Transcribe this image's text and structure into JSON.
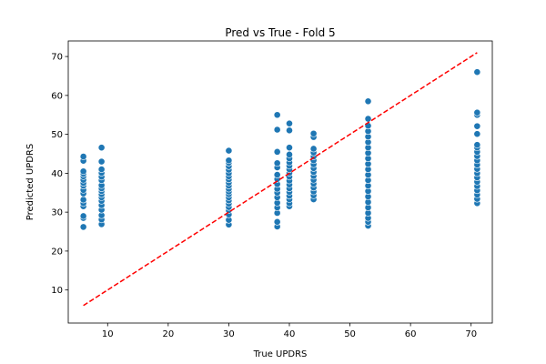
{
  "chart_data": {
    "type": "scatter",
    "title": "Pred vs True - Fold 5",
    "xlabel": "True UPDRS",
    "ylabel": "Predicted UPDRS",
    "xlim": [
      3.5,
      73.5
    ],
    "ylim": [
      1.5,
      74
    ],
    "xticks": [
      10,
      20,
      30,
      40,
      50,
      60,
      70
    ],
    "yticks": [
      10,
      20,
      30,
      40,
      50,
      60,
      70
    ],
    "grid": false,
    "legend": "none",
    "marker_color": "#1f77b4",
    "reference_line": {
      "x": [
        6,
        71
      ],
      "y": [
        6,
        71
      ],
      "color": "#ff0000",
      "style": "dashed"
    },
    "series": [
      {
        "points": [
          [
            6,
            26.2
          ],
          [
            6,
            28.5
          ],
          [
            6,
            29.0
          ],
          [
            6,
            31.5
          ],
          [
            6,
            32.3
          ],
          [
            6,
            33.2
          ],
          [
            6,
            34.8
          ],
          [
            6,
            35.7
          ],
          [
            6,
            36.8
          ],
          [
            6,
            37.5
          ],
          [
            6,
            38.3
          ],
          [
            6,
            39.2
          ],
          [
            6,
            39.9
          ],
          [
            6,
            40.5
          ],
          [
            6,
            43.2
          ],
          [
            6,
            44.3
          ],
          [
            9,
            26.9
          ],
          [
            9,
            28.1
          ],
          [
            9,
            29.2
          ],
          [
            9,
            30.6
          ],
          [
            9,
            31.8
          ],
          [
            9,
            32.9
          ],
          [
            9,
            33.8
          ],
          [
            9,
            34.6
          ],
          [
            9,
            35.4
          ],
          [
            9,
            36.1
          ],
          [
            9,
            36.9
          ],
          [
            9,
            38.2
          ],
          [
            9,
            39.1
          ],
          [
            9,
            40.1
          ],
          [
            9,
            41.0
          ],
          [
            9,
            43.0
          ],
          [
            9,
            46.6
          ],
          [
            30,
            26.8
          ],
          [
            30,
            28.0
          ],
          [
            30,
            29.4
          ],
          [
            30,
            30.5
          ],
          [
            30,
            31.3
          ],
          [
            30,
            32.2
          ],
          [
            30,
            33.0
          ],
          [
            30,
            33.8
          ],
          [
            30,
            34.6
          ],
          [
            30,
            35.3
          ],
          [
            30,
            36.0
          ],
          [
            30,
            36.8
          ],
          [
            30,
            37.6
          ],
          [
            30,
            38.4
          ],
          [
            30,
            39.2
          ],
          [
            30,
            40.0
          ],
          [
            30,
            40.9
          ],
          [
            30,
            41.8
          ],
          [
            30,
            42.7
          ],
          [
            30,
            43.3
          ],
          [
            30,
            45.8
          ],
          [
            38,
            26.3
          ],
          [
            38,
            27.5
          ],
          [
            38,
            29.8
          ],
          [
            38,
            31.2
          ],
          [
            38,
            32.4
          ],
          [
            38,
            33.8
          ],
          [
            38,
            35.0
          ],
          [
            38,
            36.0
          ],
          [
            38,
            37.2
          ],
          [
            38,
            38.5
          ],
          [
            38,
            39.6
          ],
          [
            38,
            41.5
          ],
          [
            38,
            42.6
          ],
          [
            38,
            45.5
          ],
          [
            38,
            51.2
          ],
          [
            38,
            55.0
          ],
          [
            40,
            31.5
          ],
          [
            40,
            32.3
          ],
          [
            40,
            33.3
          ],
          [
            40,
            34.2
          ],
          [
            40,
            35.2
          ],
          [
            40,
            36.1
          ],
          [
            40,
            37.1
          ],
          [
            40,
            38.1
          ],
          [
            40,
            39.1
          ],
          [
            40,
            40.1
          ],
          [
            40,
            41.0
          ],
          [
            40,
            41.9
          ],
          [
            40,
            42.8
          ],
          [
            40,
            43.8
          ],
          [
            40,
            44.8
          ],
          [
            40,
            46.6
          ],
          [
            40,
            51.0
          ],
          [
            40,
            52.8
          ],
          [
            44,
            33.3
          ],
          [
            44,
            34.3
          ],
          [
            44,
            35.3
          ],
          [
            44,
            36.3
          ],
          [
            44,
            37.3
          ],
          [
            44,
            38.3
          ],
          [
            44,
            39.3
          ],
          [
            44,
            40.3
          ],
          [
            44,
            41.3
          ],
          [
            44,
            42.3
          ],
          [
            44,
            43.3
          ],
          [
            44,
            44.3
          ],
          [
            44,
            45.3
          ],
          [
            44,
            46.3
          ],
          [
            44,
            49.3
          ],
          [
            44,
            50.2
          ],
          [
            53,
            26.5
          ],
          [
            53,
            27.5
          ],
          [
            53,
            28.5
          ],
          [
            53,
            29.8
          ],
          [
            53,
            31.2
          ],
          [
            53,
            32.6
          ],
          [
            53,
            34.0
          ],
          [
            53,
            35.4
          ],
          [
            53,
            36.8
          ],
          [
            53,
            38.2
          ],
          [
            53,
            39.6
          ],
          [
            53,
            41.0
          ],
          [
            53,
            42.4
          ],
          [
            53,
            43.8
          ],
          [
            53,
            45.2
          ],
          [
            53,
            46.6
          ],
          [
            53,
            48.0
          ],
          [
            53,
            49.4
          ],
          [
            53,
            50.8
          ],
          [
            53,
            52.2
          ],
          [
            53,
            54.0
          ],
          [
            53,
            58.5
          ],
          [
            71,
            32.3
          ],
          [
            71,
            33.4
          ],
          [
            71,
            34.5
          ],
          [
            71,
            35.6
          ],
          [
            71,
            36.7
          ],
          [
            71,
            37.8
          ],
          [
            71,
            38.9
          ],
          [
            71,
            40.0
          ],
          [
            71,
            41.1
          ],
          [
            71,
            42.2
          ],
          [
            71,
            43.3
          ],
          [
            71,
            44.4
          ],
          [
            71,
            45.5
          ],
          [
            71,
            46.6
          ],
          [
            71,
            47.3
          ],
          [
            71,
            50.1
          ],
          [
            71,
            52.1
          ],
          [
            71,
            55.0
          ],
          [
            71,
            55.6
          ],
          [
            71,
            66.0
          ]
        ]
      }
    ]
  }
}
